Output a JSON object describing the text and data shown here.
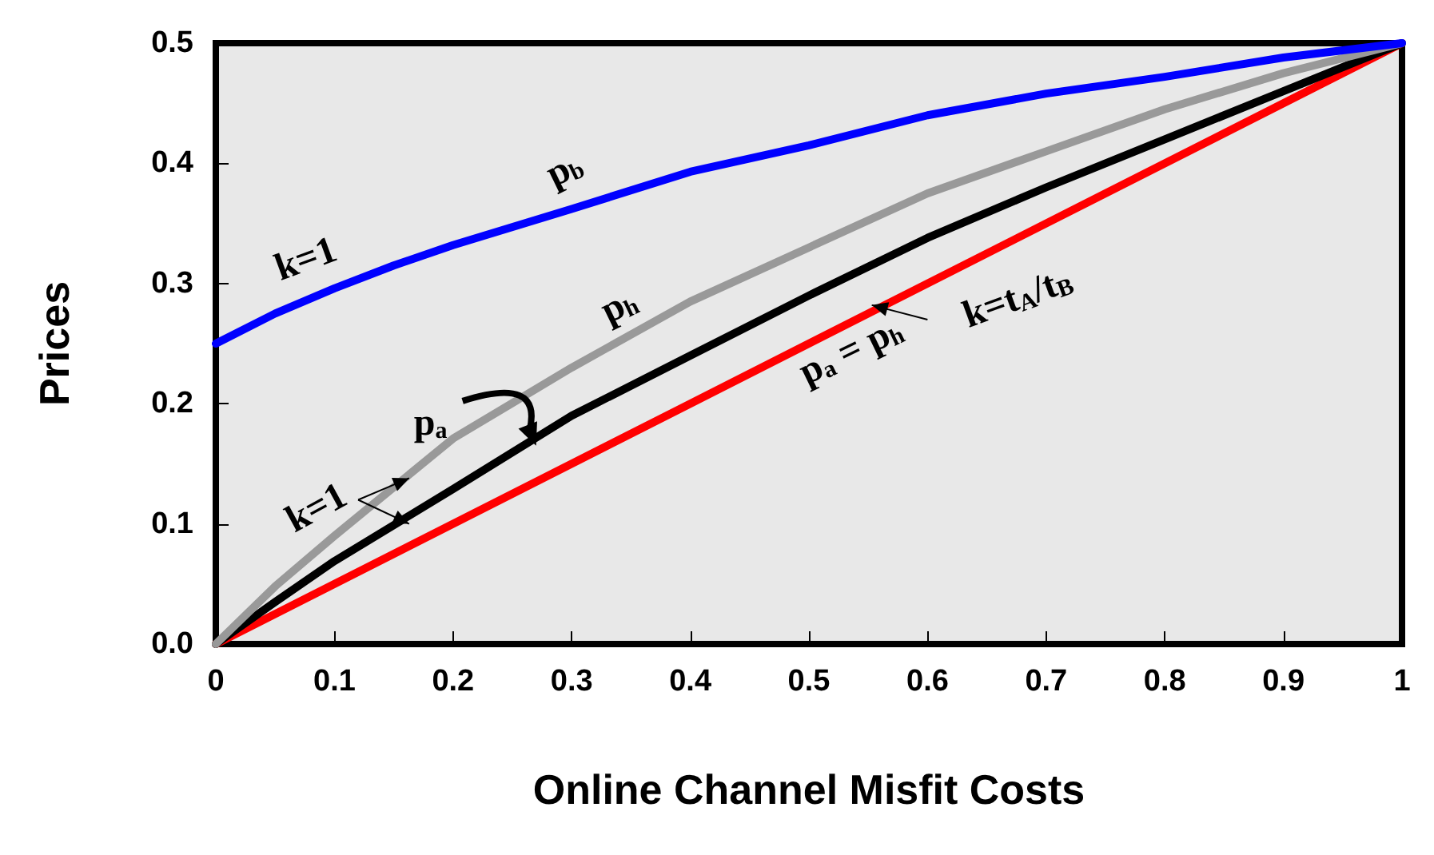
{
  "chart_data": {
    "type": "line",
    "xlabel": "Online Channel Misfit Costs",
    "ylabel": "Prices",
    "xlim": [
      0,
      1
    ],
    "xticks": [
      0,
      0.1,
      0.2,
      0.3,
      0.4,
      0.5,
      0.6,
      0.7,
      0.8,
      0.9,
      1
    ],
    "ylim": [
      0,
      0.5
    ],
    "yticks": [
      {
        "value": 0,
        "label": "0.0"
      },
      {
        "value": 0.1,
        "label": "0.1"
      },
      {
        "value": 0.2,
        "label": "0.2"
      },
      {
        "value": 0.3,
        "label": "0.3"
      },
      {
        "value": 0.4,
        "label": "0.4"
      },
      {
        "value": 0.5,
        "label": "0.5"
      }
    ],
    "grid": false,
    "marker": "none",
    "line_style": "solid",
    "series": [
      {
        "name": "p$_{a}$ = p$_{h}$",
        "color": "#ff0000",
        "x": [
          0,
          1
        ],
        "values": [
          0,
          0.5
        ]
      },
      {
        "color": "#000000",
        "x": [
          0,
          0.05,
          0.1,
          0.2,
          0.3,
          0.4,
          0.5,
          0.6,
          0.7,
          0.8,
          0.9,
          1
        ],
        "values": [
          0,
          0.035,
          0.069,
          0.129,
          0.19,
          0.24,
          0.29,
          0.338,
          0.38,
          0.42,
          0.46,
          0.5
        ]
      },
      {
        "name": "p$_{h}$",
        "color": "#999999",
        "x": [
          0,
          0.05,
          0.1,
          0.2,
          0.3,
          0.4,
          0.5,
          0.6,
          0.7,
          0.8,
          0.9,
          1
        ],
        "values": [
          0,
          0.048,
          0.09,
          0.171,
          0.23,
          0.285,
          0.33,
          0.375,
          0.41,
          0.445,
          0.475,
          0.5
        ]
      },
      {
        "name": "p$_{b}$",
        "color": "#0000ff",
        "x": [
          0,
          0.05,
          0.1,
          0.15,
          0.2,
          0.3,
          0.4,
          0.5,
          0.6,
          0.7,
          0.8,
          0.9,
          1
        ],
        "values": [
          0.25,
          0.275,
          0.296,
          0.315,
          0.332,
          0.362,
          0.393,
          0.415,
          0.44,
          0.458,
          0.472,
          0.488,
          0.5
        ]
      }
    ],
    "annotations": [
      "k=1",
      "k=1",
      "k=t$_{A}$/t$_{B}$",
      {
        "text": "p$_{a}$",
        "x": 0.27,
        "y": 0.165
      }
    ]
  }
}
